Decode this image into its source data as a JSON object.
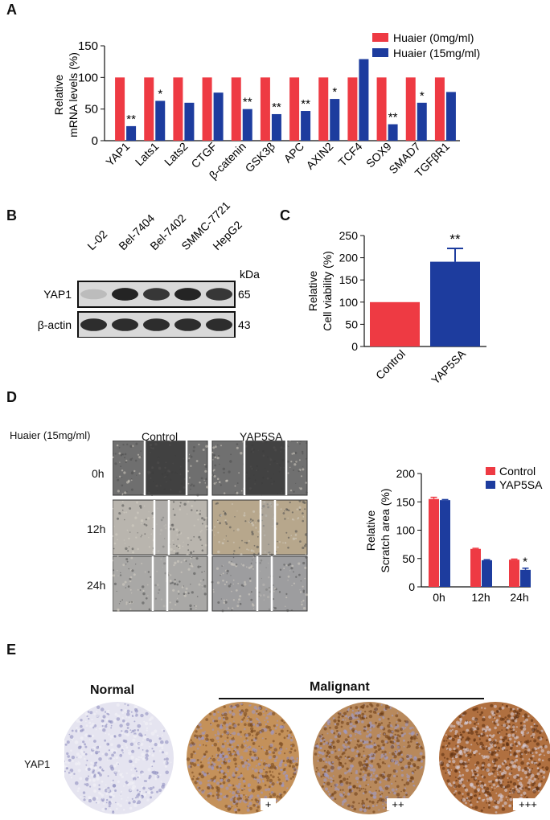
{
  "colors": {
    "red": "#EE3A43",
    "blue": "#1D3C9E",
    "wb_bg": "#d9d9d9",
    "band": "#1a1a1a"
  },
  "panels": {
    "a": "A",
    "b": "B",
    "c": "C",
    "d": "D",
    "e": "E"
  },
  "chart_data": [
    {
      "type": "bar",
      "ylabel_line1": "Relative",
      "ylabel_line2": "mRNA levels (%)",
      "ylim": [
        0,
        150
      ],
      "yticks": [
        "0",
        "50",
        "100",
        "150"
      ],
      "categories": [
        "YAP1",
        "Lats1",
        "Lats2",
        "CTGF",
        "β-catenin",
        "GSK3β",
        "APC",
        "AXIN2",
        "TCF4",
        "SOX9",
        "SMAD7",
        "TGFβR1"
      ],
      "series": [
        {
          "name": "Huaier (0mg/ml)",
          "color": "#EE3A43",
          "values": [
            100,
            100,
            100,
            100,
            100,
            100,
            100,
            100,
            100,
            100,
            100,
            100
          ]
        },
        {
          "name": "Huaier (15mg/ml)",
          "color": "#1D3C9E",
          "values": [
            23,
            63,
            60,
            76,
            50,
            42,
            47,
            66,
            129,
            26,
            60,
            77
          ]
        }
      ],
      "annotations": [
        "**",
        "*",
        "",
        "",
        "**",
        "**",
        "**",
        "*",
        "",
        "**",
        "*",
        ""
      ]
    },
    {
      "type": "bar",
      "ylabel_line1": "Relative",
      "ylabel_line2": "Cell viability (%)",
      "ylim": [
        0,
        250
      ],
      "yticks": [
        "0",
        "50",
        "100",
        "150",
        "200",
        "250"
      ],
      "categories": [
        "Control",
        "YAP5SA"
      ],
      "values": [
        100,
        191
      ],
      "errors": [
        0,
        30
      ],
      "colors": [
        "#EE3A43",
        "#1D3C9E"
      ],
      "annotation": "**"
    },
    {
      "type": "bar",
      "ylabel_line1": "Relative",
      "ylabel_line2": "Scratch area (%)",
      "ylim": [
        0,
        200
      ],
      "yticks": [
        "0",
        "50",
        "100",
        "150",
        "200"
      ],
      "categories": [
        "0h",
        "12h",
        "24h"
      ],
      "series": [
        {
          "name": "Control",
          "color": "#EE3A43",
          "values": [
            155,
            67,
            48
          ],
          "errors": [
            3,
            1,
            1
          ]
        },
        {
          "name": "YAP5SA",
          "color": "#1D3C9E",
          "values": [
            153,
            47,
            30
          ],
          "errors": [
            1,
            1,
            3
          ]
        }
      ],
      "annotations": [
        "",
        "",
        "*"
      ]
    }
  ],
  "western": {
    "lanes": [
      "L-02",
      "Bel-7404",
      "Bel-7402",
      "SMMC-7721",
      "HepG2"
    ],
    "kda": "kDa",
    "rows": [
      {
        "label": "YAP1",
        "kda": "65",
        "intensity": [
          0.15,
          0.95,
          0.85,
          0.95,
          0.85
        ]
      },
      {
        "label": "β-actin",
        "kda": "43",
        "intensity": [
          0.9,
          0.9,
          0.9,
          0.9,
          0.9
        ]
      }
    ]
  },
  "scratch": {
    "treatment": "Huaier (15mg/ml)",
    "columns": [
      "Control",
      "YAP5SA"
    ],
    "rows": [
      "0h",
      "12h",
      "24h"
    ]
  },
  "ihc": {
    "normal": "Normal",
    "malignant": "Malignant",
    "row_label": "YAP1",
    "scores": [
      "+",
      "++",
      "+++"
    ]
  }
}
